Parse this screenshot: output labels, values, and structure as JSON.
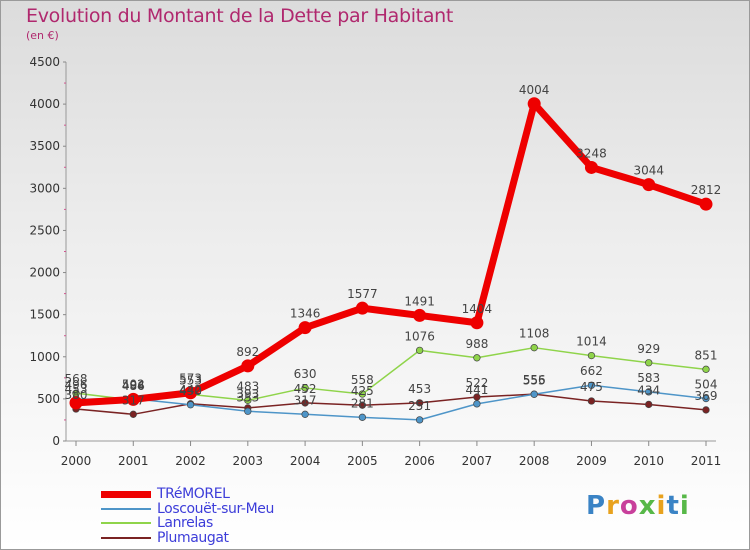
{
  "header": {
    "title": "Evolution du Montant de la Dette par Habitant",
    "subtitle": "(en €)"
  },
  "brand": {
    "text": "Proxiti",
    "colors": [
      "#3a83c5",
      "#e8a21e",
      "#c83f9b",
      "#57b848",
      "#e8a21e",
      "#3a83c5",
      "#57b848"
    ]
  },
  "chart_data": {
    "type": "line",
    "title": "Evolution du Montant de la Dette par Habitant",
    "subtitle": "(en €)",
    "xlabel": "",
    "ylabel": "",
    "categories": [
      "2000",
      "2001",
      "2002",
      "2003",
      "2004",
      "2005",
      "2006",
      "2007",
      "2008",
      "2009",
      "2010",
      "2011"
    ],
    "ylim": [
      0,
      4500
    ],
    "yticks": [
      0,
      500,
      1000,
      1500,
      2000,
      2500,
      3000,
      3500,
      4000,
      4500
    ],
    "grid": false,
    "legend_position": "bottom-left",
    "series": [
      {
        "name": "TRéMOREL",
        "color": "#ee0000",
        "values": [
          453,
          494,
          573,
          892,
          1346,
          1577,
          1491,
          1404,
          4004,
          3248,
          3044,
          2812
        ],
        "labels": [
          "453",
          "494",
          "573",
          "892",
          "1346",
          "1577",
          "1491",
          "1404",
          "4004",
          "3248",
          "3044",
          "2812"
        ]
      },
      {
        "name": "Loscouët-sur-Meu",
        "color": "#4e95c8",
        "values": [
          496,
          502,
          430,
          353,
          317,
          281,
          251,
          441,
          555,
          662,
          583,
          504
        ],
        "labels": [
          "496",
          "502",
          "430",
          "353",
          "317",
          "281",
          "251",
          "441",
          "555",
          "662",
          "583",
          "504"
        ]
      },
      {
        "name": "Lanrelas",
        "color": "#8fd44a",
        "values": [
          568,
          486,
          553,
          483,
          630,
          558,
          1076,
          988,
          1108,
          1014,
          929,
          851
        ],
        "labels": [
          "568",
          "486",
          "553",
          "483",
          "630",
          "558",
          "1076",
          "988",
          "1108",
          "1014",
          "929",
          "851"
        ]
      },
      {
        "name": "Plumaugat",
        "color": "#7a2323",
        "values": [
          380,
          317,
          442,
          393,
          452,
          425,
          453,
          522,
          556,
          475,
          434,
          369
        ],
        "labels": [
          "380",
          "317",
          "442",
          "393",
          "452",
          "425",
          "453",
          "522",
          "556",
          "475",
          "434",
          "369"
        ]
      }
    ]
  }
}
